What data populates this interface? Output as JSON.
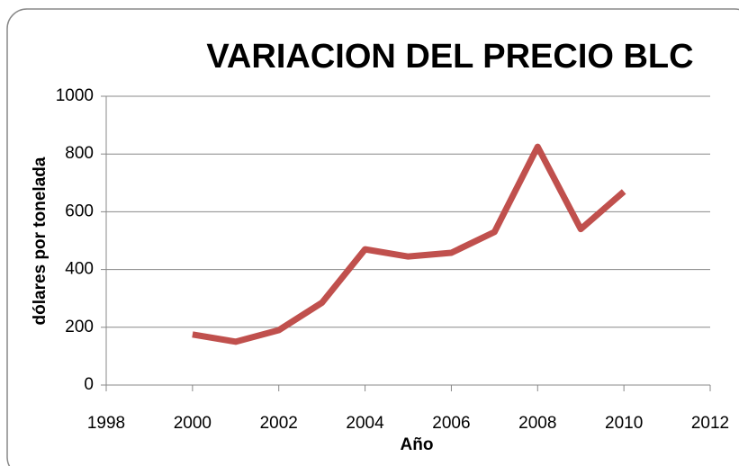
{
  "chart_data": {
    "type": "line",
    "title": "VARIACION DEL PRECIO BLC",
    "x_label": "Año",
    "y_label": "dólares por tonelada",
    "x": [
      2000,
      2001,
      2002,
      2003,
      2004,
      2005,
      2006,
      2007,
      2008,
      2009,
      2010
    ],
    "series": [
      {
        "name": "Precio BLC",
        "color": "#c0504d",
        "values": [
          175,
          150,
          190,
          285,
          470,
          445,
          458,
          530,
          825,
          540,
          670
        ]
      }
    ],
    "xlim": [
      1998,
      2012
    ],
    "xticks": [
      1998,
      2000,
      2002,
      2004,
      2006,
      2008,
      2010,
      2012
    ],
    "ylim": [
      0,
      1000
    ],
    "yticks": [
      0,
      200,
      400,
      600,
      800,
      1000
    ],
    "grid": true
  }
}
